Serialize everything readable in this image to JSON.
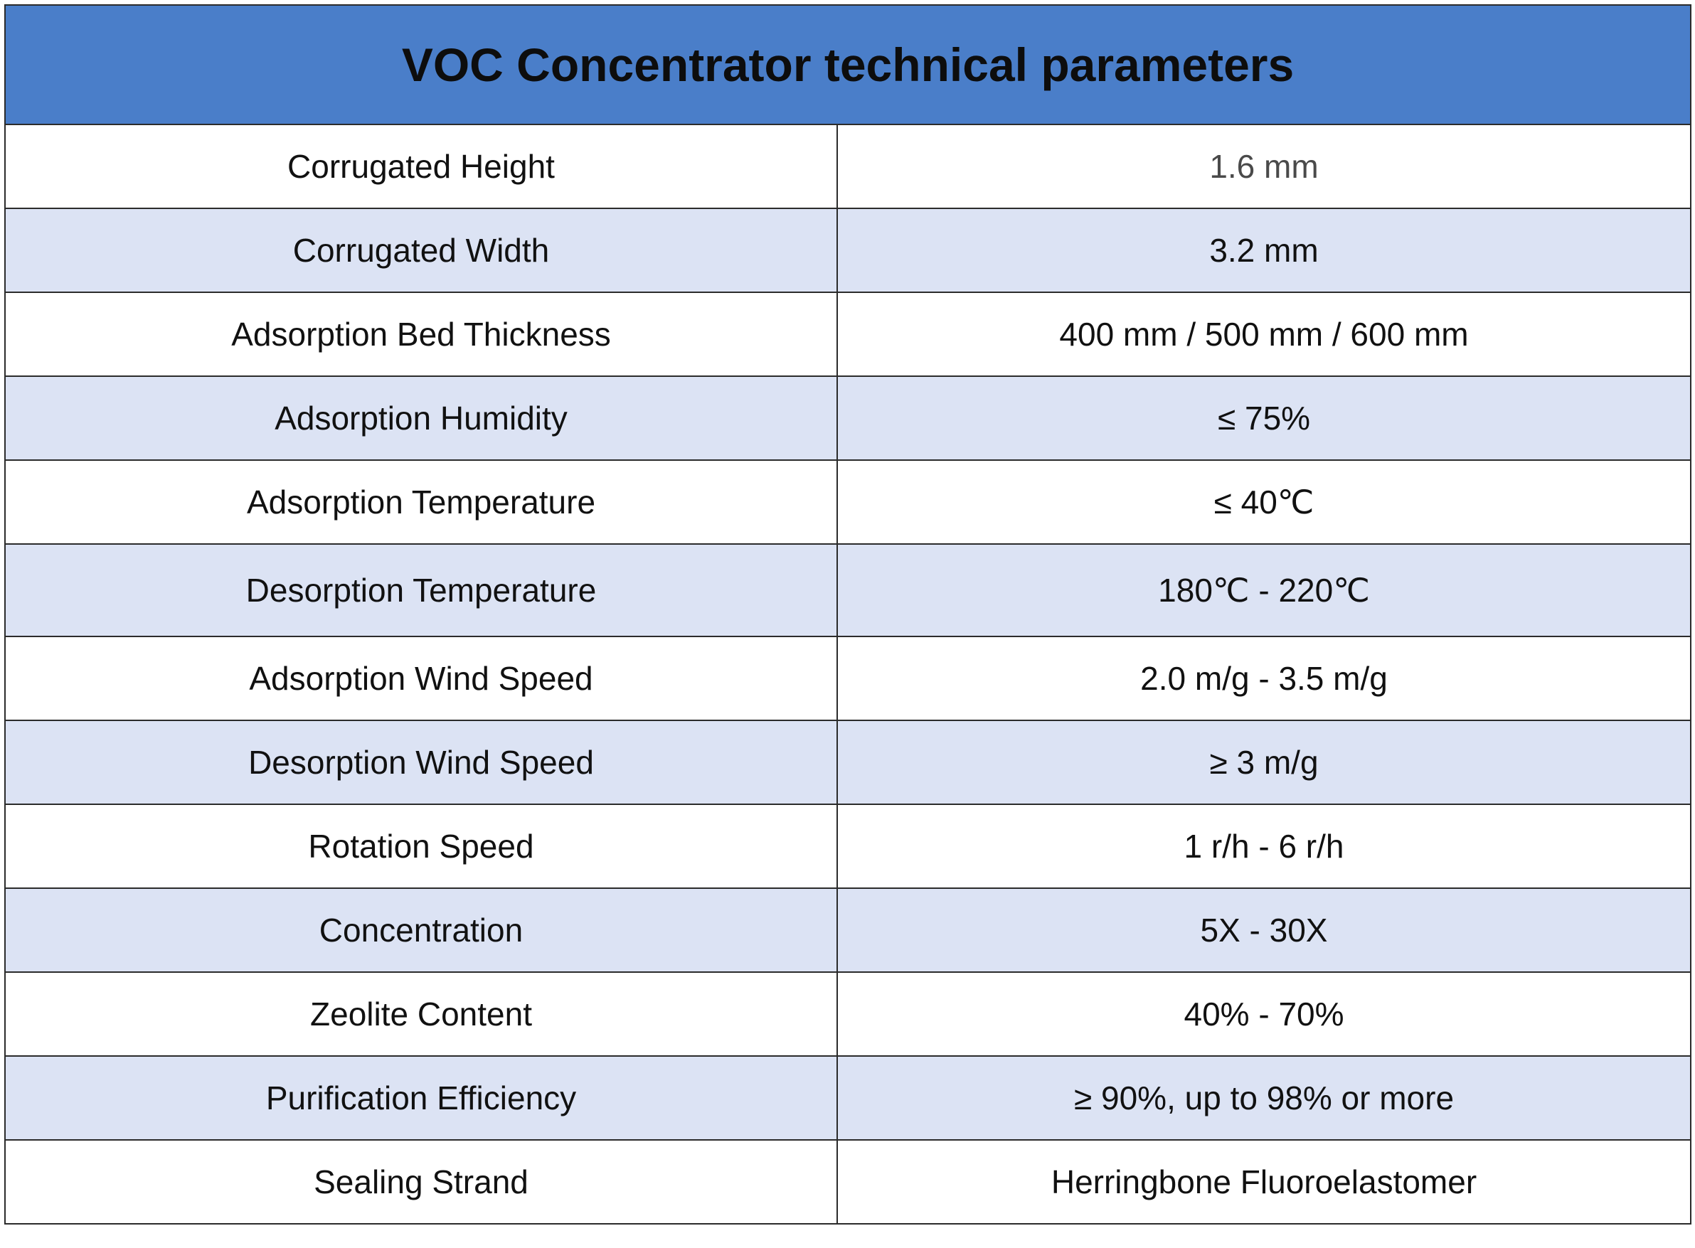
{
  "table": {
    "title": "VOC Concentrator technical parameters",
    "rows": [
      {
        "label": "Corrugated Height",
        "value": "1.6 mm"
      },
      {
        "label": "Corrugated Width",
        "value": "3.2 mm"
      },
      {
        "label": "Adsorption Bed Thickness",
        "value": "400 mm / 500 mm / 600 mm"
      },
      {
        "label": "Adsorption Humidity",
        "value": "≤ 75%"
      },
      {
        "label": "Adsorption Temperature",
        "value": "≤ 40℃"
      },
      {
        "label": "Desorption Temperature",
        "value": "180℃ - 220℃"
      },
      {
        "label": "Adsorption Wind Speed",
        "value": "2.0 m/g - 3.5 m/g"
      },
      {
        "label": "Desorption Wind Speed",
        "value": "≥ 3 m/g"
      },
      {
        "label": "Rotation Speed",
        "value": "1 r/h - 6 r/h"
      },
      {
        "label": "Concentration",
        "value": "5X - 30X"
      },
      {
        "label": "Zeolite Content",
        "value": "40% - 70%"
      },
      {
        "label": "Purification Efficiency",
        "value": "≥ 90%, up to 98% or more"
      },
      {
        "label": "Sealing Strand",
        "value": "Herringbone Fluoroelastomer"
      }
    ]
  },
  "colors": {
    "header_background": "#4a7ec9",
    "alternate_row_background": "#dce3f4",
    "border": "#2b2b2b"
  }
}
